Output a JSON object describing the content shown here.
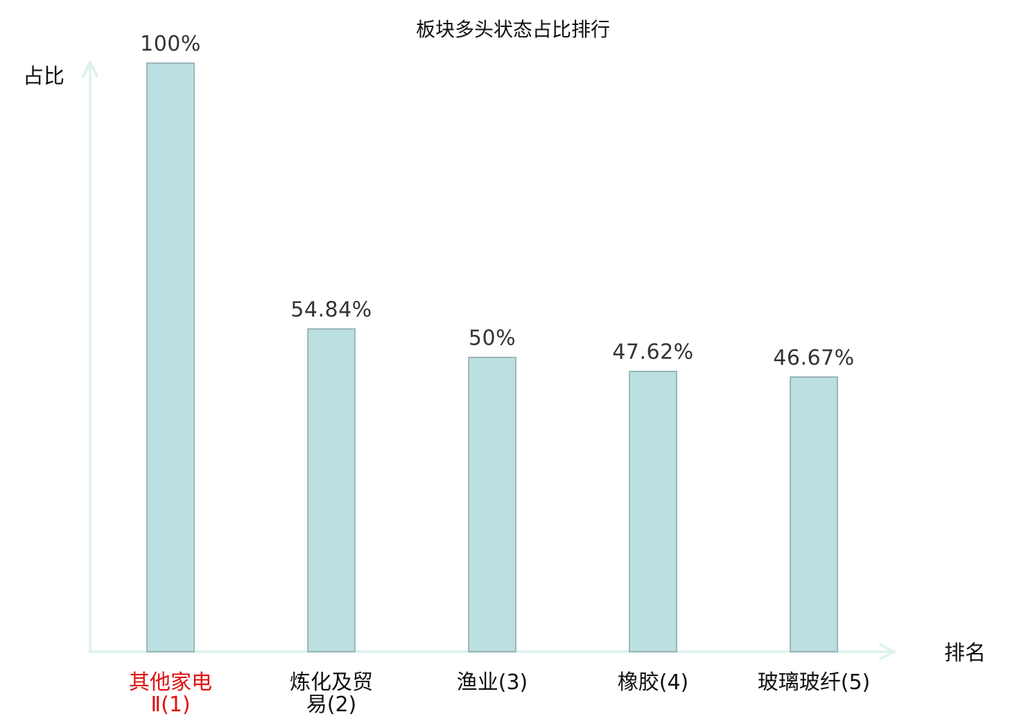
{
  "chart_data": {
    "type": "bar",
    "title": "板块多头状态占比排行",
    "ylabel": "占比",
    "xlabel": "排名",
    "ylim": [
      0,
      100
    ],
    "grid": false,
    "categories": [
      {
        "name": "其他家电Ⅱ",
        "rank": "(1)",
        "line1": "其他家电",
        "line2": "Ⅱ(1)",
        "highlight": true
      },
      {
        "name": "炼化及贸易",
        "rank": "(2)",
        "line1": "炼化及贸",
        "line2": "易(2)",
        "highlight": false
      },
      {
        "name": "渔业",
        "rank": "(3)",
        "line1": "渔业(3)",
        "line2": "",
        "highlight": false
      },
      {
        "name": "橡胶",
        "rank": "(4)",
        "line1": "橡胶(4)",
        "line2": "",
        "highlight": false
      },
      {
        "name": "玻璃玻纤",
        "rank": "(5)",
        "line1": "玻璃玻纤(5)",
        "line2": "",
        "highlight": false
      }
    ],
    "values": [
      100,
      54.84,
      50,
      47.62,
      46.67
    ],
    "value_labels": [
      "100%",
      "54.84%",
      "50%",
      "47.62%",
      "46.67%"
    ],
    "colors": {
      "bar_fill": "#bce0e1",
      "bar_stroke": "#86a5a6",
      "axis": "#dff2ef",
      "highlight_text": "#e01010",
      "normal_text": "#111111",
      "rank_text": "#555555"
    }
  }
}
